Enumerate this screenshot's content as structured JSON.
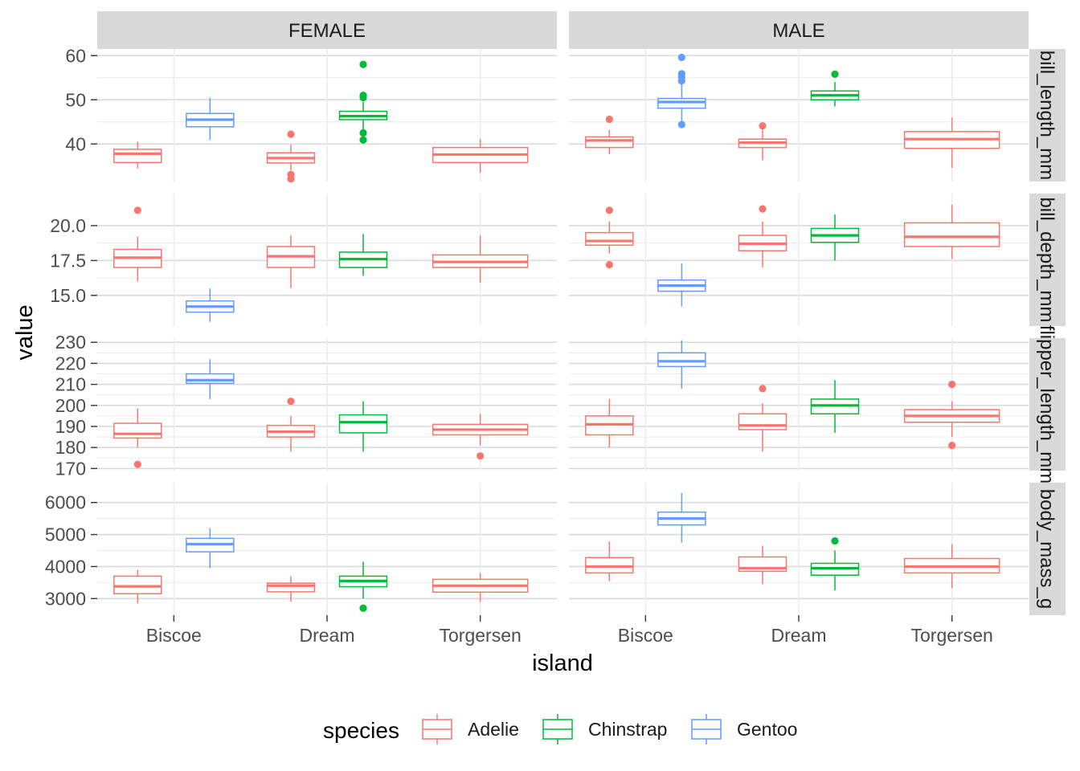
{
  "chart_data": {
    "type": "boxplot",
    "facet_cols": [
      "FEMALE",
      "MALE"
    ],
    "facet_rows": [
      {
        "label": "bill_length_mm",
        "ylim": [
          31.5,
          61.5
        ],
        "ticks": [
          {
            "v": 40,
            "label": "40"
          },
          {
            "v": 50,
            "label": "50"
          },
          {
            "v": 60,
            "label": "60"
          }
        ]
      },
      {
        "label": "bill_depth_mm",
        "ylim": [
          12.8,
          22.3
        ],
        "ticks": [
          {
            "v": 15,
            "label": "15.0"
          },
          {
            "v": 17.5,
            "label": "17.5"
          },
          {
            "v": 20,
            "label": "20.0"
          }
        ]
      },
      {
        "label": "flipper_length_mm",
        "ylim": [
          169,
          232
        ],
        "ticks": [
          {
            "v": 170,
            "label": "170"
          },
          {
            "v": 180,
            "label": "180"
          },
          {
            "v": 190,
            "label": "190"
          },
          {
            "v": 200,
            "label": "200"
          },
          {
            "v": 210,
            "label": "210"
          },
          {
            "v": 220,
            "label": "220"
          },
          {
            "v": 230,
            "label": "230"
          }
        ]
      },
      {
        "label": "body_mass_g",
        "ylim": [
          2480,
          6620
        ],
        "ticks": [
          {
            "v": 3000,
            "label": "3000"
          },
          {
            "v": 4000,
            "label": "4000"
          },
          {
            "v": 5000,
            "label": "5000"
          },
          {
            "v": 6000,
            "label": "6000"
          }
        ]
      }
    ],
    "categories": [
      "Biscoe",
      "Dream",
      "Torgersen"
    ],
    "xlabel": "island",
    "ylabel": "value",
    "legend": {
      "title": "species",
      "position": "bottom",
      "entries": [
        {
          "name": "Adelie",
          "color": "#F8766D"
        },
        {
          "name": "Chinstrap",
          "color": "#00BA38"
        },
        {
          "name": "Gentoo",
          "color": "#619CFF"
        }
      ]
    },
    "boxes": [
      {
        "facet": "FEMALE",
        "row": "bill_length_mm",
        "island": "Biscoe",
        "species": "Adelie",
        "min": 34.5,
        "q1": 35.8,
        "median": 37.8,
        "q3": 38.8,
        "max": 40.5,
        "outliers": []
      },
      {
        "facet": "FEMALE",
        "row": "bill_length_mm",
        "island": "Biscoe",
        "species": "Gentoo",
        "min": 40.9,
        "q1": 43.9,
        "median": 45.5,
        "q3": 46.9,
        "max": 50.5,
        "outliers": []
      },
      {
        "facet": "FEMALE",
        "row": "bill_length_mm",
        "island": "Dream",
        "species": "Adelie",
        "min": 34.0,
        "q1": 35.7,
        "median": 36.8,
        "q3": 38.0,
        "max": 39.8,
        "outliers": [
          42.2,
          33.1,
          32.1
        ]
      },
      {
        "facet": "FEMALE",
        "row": "bill_length_mm",
        "island": "Dream",
        "species": "Chinstrap",
        "min": 43.2,
        "q1": 45.5,
        "median": 46.3,
        "q3": 47.4,
        "max": 49.6,
        "outliers": [
          58.0,
          51.0,
          50.5,
          42.5,
          40.9
        ]
      },
      {
        "facet": "FEMALE",
        "row": "bill_length_mm",
        "island": "Torgersen",
        "species": "Adelie",
        "min": 33.5,
        "q1": 35.8,
        "median": 37.6,
        "q3": 39.2,
        "max": 41.1,
        "outliers": []
      },
      {
        "facet": "MALE",
        "row": "bill_length_mm",
        "island": "Biscoe",
        "species": "Adelie",
        "min": 37.7,
        "q1": 39.2,
        "median": 40.8,
        "q3": 41.6,
        "max": 43.2,
        "outliers": [
          45.6
        ]
      },
      {
        "facet": "MALE",
        "row": "bill_length_mm",
        "island": "Biscoe",
        "species": "Gentoo",
        "min": 45.2,
        "q1": 48.1,
        "median": 49.5,
        "q3": 50.3,
        "max": 53.5,
        "outliers": [
          59.6,
          55.9,
          55.1,
          54.3,
          44.4
        ]
      },
      {
        "facet": "MALE",
        "row": "bill_length_mm",
        "island": "Dream",
        "species": "Adelie",
        "min": 36.3,
        "q1": 39.2,
        "median": 40.3,
        "q3": 41.1,
        "max": 43.2,
        "outliers": [
          44.1
        ]
      },
      {
        "facet": "MALE",
        "row": "bill_length_mm",
        "island": "Dream",
        "species": "Chinstrap",
        "min": 48.5,
        "q1": 50.0,
        "median": 51.0,
        "q3": 52.0,
        "max": 54.0,
        "outliers": [
          55.8
        ]
      },
      {
        "facet": "MALE",
        "row": "bill_length_mm",
        "island": "Torgersen",
        "species": "Adelie",
        "min": 34.6,
        "q1": 39.0,
        "median": 41.1,
        "q3": 42.8,
        "max": 46.0,
        "outliers": []
      },
      {
        "facet": "FEMALE",
        "row": "bill_depth_mm",
        "island": "Biscoe",
        "species": "Adelie",
        "min": 16.0,
        "q1": 17.0,
        "median": 17.7,
        "q3": 18.3,
        "max": 19.2,
        "outliers": [
          21.1
        ]
      },
      {
        "facet": "FEMALE",
        "row": "bill_depth_mm",
        "island": "Biscoe",
        "species": "Gentoo",
        "min": 13.1,
        "q1": 13.8,
        "median": 14.2,
        "q3": 14.6,
        "max": 15.5,
        "outliers": []
      },
      {
        "facet": "FEMALE",
        "row": "bill_depth_mm",
        "island": "Dream",
        "species": "Adelie",
        "min": 15.5,
        "q1": 17.0,
        "median": 17.8,
        "q3": 18.5,
        "max": 19.3,
        "outliers": []
      },
      {
        "facet": "FEMALE",
        "row": "bill_depth_mm",
        "island": "Dream",
        "species": "Chinstrap",
        "min": 16.4,
        "q1": 17.0,
        "median": 17.6,
        "q3": 18.1,
        "max": 19.4,
        "outliers": []
      },
      {
        "facet": "FEMALE",
        "row": "bill_depth_mm",
        "island": "Torgersen",
        "species": "Adelie",
        "min": 15.9,
        "q1": 17.0,
        "median": 17.4,
        "q3": 17.9,
        "max": 19.3,
        "outliers": []
      },
      {
        "facet": "MALE",
        "row": "bill_depth_mm",
        "island": "Biscoe",
        "species": "Adelie",
        "min": 18.0,
        "q1": 18.6,
        "median": 18.9,
        "q3": 19.5,
        "max": 20.3,
        "outliers": [
          21.1,
          17.2
        ]
      },
      {
        "facet": "MALE",
        "row": "bill_depth_mm",
        "island": "Biscoe",
        "species": "Gentoo",
        "min": 14.2,
        "q1": 15.3,
        "median": 15.7,
        "q3": 16.1,
        "max": 17.3,
        "outliers": []
      },
      {
        "facet": "MALE",
        "row": "bill_depth_mm",
        "island": "Dream",
        "species": "Adelie",
        "min": 17.0,
        "q1": 18.2,
        "median": 18.7,
        "q3": 19.3,
        "max": 20.3,
        "outliers": [
          21.2
        ]
      },
      {
        "facet": "MALE",
        "row": "bill_depth_mm",
        "island": "Dream",
        "species": "Chinstrap",
        "min": 17.5,
        "q1": 18.8,
        "median": 19.3,
        "q3": 19.8,
        "max": 20.8,
        "outliers": []
      },
      {
        "facet": "MALE",
        "row": "bill_depth_mm",
        "island": "Torgersen",
        "species": "Adelie",
        "min": 17.6,
        "q1": 18.5,
        "median": 19.2,
        "q3": 20.2,
        "max": 21.5,
        "outliers": []
      },
      {
        "facet": "FEMALE",
        "row": "flipper_length_mm",
        "island": "Biscoe",
        "species": "Adelie",
        "min": 180,
        "q1": 184.5,
        "median": 186.5,
        "q3": 191.5,
        "max": 198.5,
        "outliers": [
          172
        ]
      },
      {
        "facet": "FEMALE",
        "row": "flipper_length_mm",
        "island": "Biscoe",
        "species": "Gentoo",
        "min": 203,
        "q1": 210.5,
        "median": 212,
        "q3": 215,
        "max": 222,
        "outliers": []
      },
      {
        "facet": "FEMALE",
        "row": "flipper_length_mm",
        "island": "Dream",
        "species": "Adelie",
        "min": 178,
        "q1": 185,
        "median": 187.5,
        "q3": 190.5,
        "max": 195,
        "outliers": [
          202
        ]
      },
      {
        "facet": "FEMALE",
        "row": "flipper_length_mm",
        "island": "Dream",
        "species": "Chinstrap",
        "min": 178,
        "q1": 187,
        "median": 192,
        "q3": 195.5,
        "max": 202,
        "outliers": []
      },
      {
        "facet": "FEMALE",
        "row": "flipper_length_mm",
        "island": "Torgersen",
        "species": "Adelie",
        "min": 181,
        "q1": 186,
        "median": 188.5,
        "q3": 191,
        "max": 196,
        "outliers": [
          176
        ]
      },
      {
        "facet": "MALE",
        "row": "flipper_length_mm",
        "island": "Biscoe",
        "species": "Adelie",
        "min": 180,
        "q1": 186,
        "median": 191,
        "q3": 195,
        "max": 203,
        "outliers": []
      },
      {
        "facet": "MALE",
        "row": "flipper_length_mm",
        "island": "Biscoe",
        "species": "Gentoo",
        "min": 208,
        "q1": 218.5,
        "median": 221,
        "q3": 225,
        "max": 231,
        "outliers": []
      },
      {
        "facet": "MALE",
        "row": "flipper_length_mm",
        "island": "Dream",
        "species": "Adelie",
        "min": 178,
        "q1": 188.5,
        "median": 190.5,
        "q3": 196,
        "max": 201,
        "outliers": [
          208
        ]
      },
      {
        "facet": "MALE",
        "row": "flipper_length_mm",
        "island": "Dream",
        "species": "Chinstrap",
        "min": 187,
        "q1": 196,
        "median": 200,
        "q3": 203,
        "max": 212,
        "outliers": []
      },
      {
        "facet": "MALE",
        "row": "flipper_length_mm",
        "island": "Torgersen",
        "species": "Adelie",
        "min": 185,
        "q1": 192,
        "median": 195,
        "q3": 198,
        "max": 202,
        "outliers": [
          210,
          181
        ]
      },
      {
        "facet": "FEMALE",
        "row": "body_mass_g",
        "island": "Biscoe",
        "species": "Adelie",
        "min": 2850,
        "q1": 3150,
        "median": 3380,
        "q3": 3700,
        "max": 3900,
        "outliers": []
      },
      {
        "facet": "FEMALE",
        "row": "body_mass_g",
        "island": "Biscoe",
        "species": "Gentoo",
        "min": 3950,
        "q1": 4460,
        "median": 4700,
        "q3": 4880,
        "max": 5200,
        "outliers": []
      },
      {
        "facet": "FEMALE",
        "row": "body_mass_g",
        "island": "Dream",
        "species": "Adelie",
        "min": 2900,
        "q1": 3210,
        "median": 3400,
        "q3": 3480,
        "max": 3700,
        "outliers": []
      },
      {
        "facet": "FEMALE",
        "row": "body_mass_g",
        "island": "Dream",
        "species": "Chinstrap",
        "min": 3000,
        "q1": 3370,
        "median": 3550,
        "q3": 3700,
        "max": 4150,
        "outliers": [
          2700
        ]
      },
      {
        "facet": "FEMALE",
        "row": "body_mass_g",
        "island": "Torgersen",
        "species": "Adelie",
        "min": 2900,
        "q1": 3200,
        "median": 3400,
        "q3": 3600,
        "max": 3800,
        "outliers": []
      },
      {
        "facet": "MALE",
        "row": "body_mass_g",
        "island": "Biscoe",
        "species": "Adelie",
        "min": 3550,
        "q1": 3800,
        "median": 4000,
        "q3": 4280,
        "max": 4780,
        "outliers": []
      },
      {
        "facet": "MALE",
        "row": "body_mass_g",
        "island": "Biscoe",
        "species": "Gentoo",
        "min": 4750,
        "q1": 5300,
        "median": 5500,
        "q3": 5700,
        "max": 6300,
        "outliers": []
      },
      {
        "facet": "MALE",
        "row": "body_mass_g",
        "island": "Dream",
        "species": "Adelie",
        "min": 3450,
        "q1": 3850,
        "median": 3950,
        "q3": 4300,
        "max": 4650,
        "outliers": []
      },
      {
        "facet": "MALE",
        "row": "body_mass_g",
        "island": "Dream",
        "species": "Chinstrap",
        "min": 3250,
        "q1": 3730,
        "median": 3950,
        "q3": 4100,
        "max": 4500,
        "outliers": [
          4800
        ]
      },
      {
        "facet": "MALE",
        "row": "body_mass_g",
        "island": "Torgersen",
        "species": "Adelie",
        "min": 3325,
        "q1": 3800,
        "median": 4000,
        "q3": 4250,
        "max": 4700,
        "outliers": []
      }
    ]
  }
}
